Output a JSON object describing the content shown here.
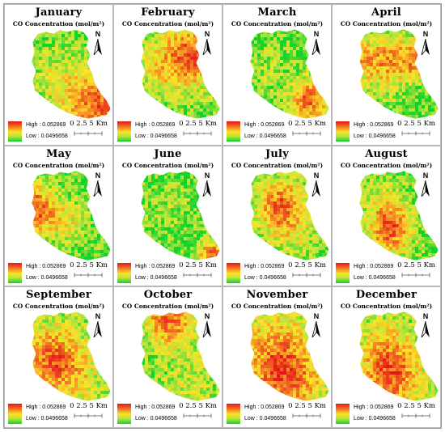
{
  "panels": [
    {
      "month": "January",
      "pattern": "se-south"
    },
    {
      "month": "February",
      "pattern": "ne-upper"
    },
    {
      "month": "March",
      "pattern": "se-low"
    },
    {
      "month": "April",
      "pattern": "band-upper"
    },
    {
      "month": "May",
      "pattern": "west"
    },
    {
      "month": "June",
      "pattern": "south-tip"
    },
    {
      "month": "July",
      "pattern": "center"
    },
    {
      "month": "August",
      "pattern": "center-lower"
    },
    {
      "month": "September",
      "pattern": "west-center"
    },
    {
      "month": "October",
      "pattern": "north-top"
    },
    {
      "month": "November",
      "pattern": "southwest-broad"
    },
    {
      "month": "December",
      "pattern": "southwest"
    }
  ],
  "shared": {
    "subtitle": "CO Concentration (mol/m²)",
    "legend_high": "High : 0.052869",
    "legend_low": "Low : 0.0496658",
    "scale_text": "0  2.5  5 Km",
    "north_label": "N"
  },
  "colors": {
    "high": "#e5141a",
    "mid_high": "#f47c22",
    "mid": "#fbe327",
    "mid_low": "#b8e43a",
    "low": "#12d22d"
  },
  "icons": [
    "north-arrow-icon",
    "scale-bar-icon"
  ]
}
